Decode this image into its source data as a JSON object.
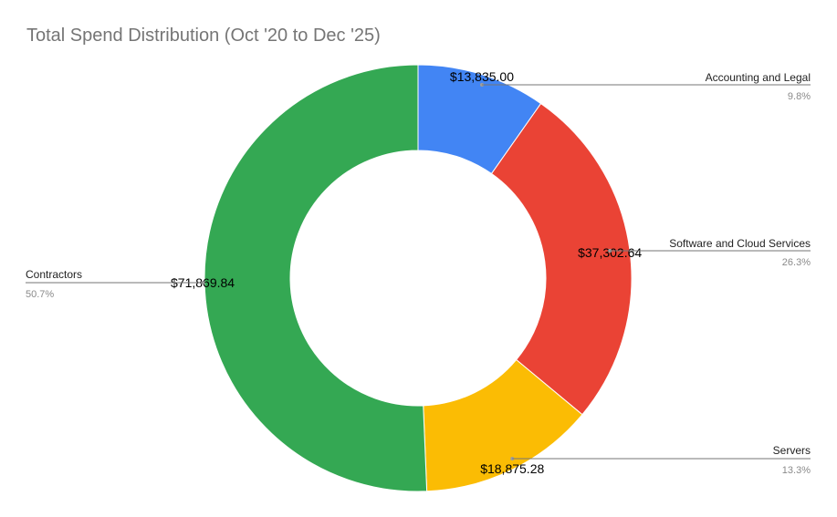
{
  "chart_data": {
    "type": "pie",
    "title": "Total Spend Distribution (Oct '20 to Dec '25)",
    "donut": true,
    "slices": [
      {
        "name": "Accounting and Legal",
        "value": 13835.0,
        "value_label": "$13,835.00",
        "percent_label": "9.8%",
        "color": "#4285F4"
      },
      {
        "name": "Software and Cloud Services",
        "value": 37302.64,
        "value_label": "$37,302.64",
        "percent_label": "26.3%",
        "color": "#EA4335"
      },
      {
        "name": "Servers",
        "value": 18875.28,
        "value_label": "$18,875.28",
        "percent_label": "13.3%",
        "color": "#FBBC04"
      },
      {
        "name": "Contractors",
        "value": 71869.84,
        "value_label": "$71,869.84",
        "percent_label": "50.7%",
        "color": "#34A853"
      }
    ]
  }
}
